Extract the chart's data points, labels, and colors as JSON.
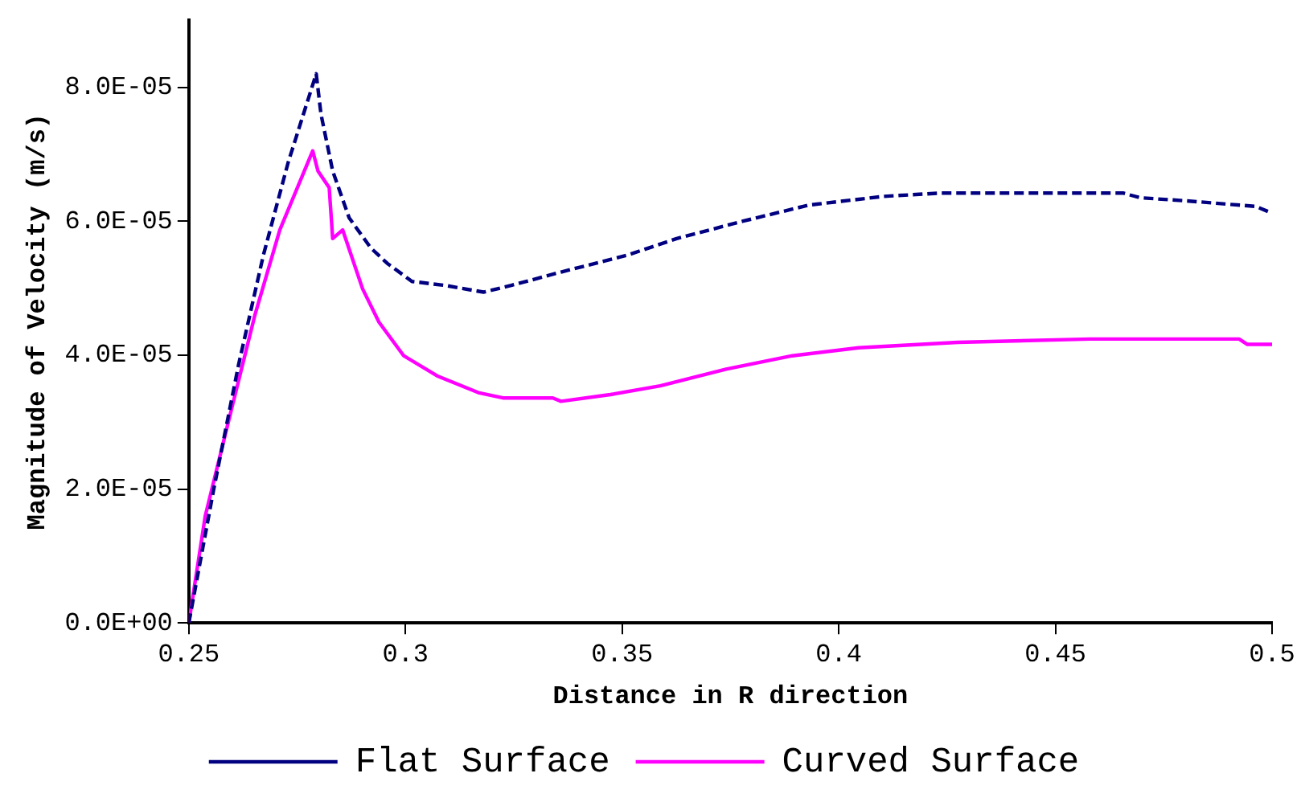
{
  "chart_data": {
    "type": "line",
    "xlabel": "Distance in R direction",
    "ylabel": "Magnitude of Velocity (m/s)",
    "xlim": [
      0.25,
      0.5
    ],
    "xticks": [
      0.25,
      0.3,
      0.35,
      0.4,
      0.45,
      0.5
    ],
    "ylim": [
      0,
      9e-05
    ],
    "yticks": [
      {
        "value": 0,
        "label": "0.0E+00"
      },
      {
        "value": 2e-05,
        "label": "2.0E-05"
      },
      {
        "value": 4e-05,
        "label": "4.0E-05"
      },
      {
        "value": 6e-05,
        "label": "6.0E-05"
      },
      {
        "value": 8e-05,
        "label": "8.0E-05"
      }
    ],
    "grid": false,
    "legend": "bottom",
    "marker": "none",
    "series": [
      {
        "name": "Flat Surface",
        "color": "#000080",
        "line_style": "dashed",
        "x": [
          0.25,
          0.2557,
          0.2615,
          0.2672,
          0.2729,
          0.2794,
          0.2805,
          0.2832,
          0.287,
          0.292,
          0.2958,
          0.3015,
          0.3092,
          0.318,
          0.3244,
          0.3359,
          0.3511,
          0.3626,
          0.3779,
          0.3931,
          0.4103,
          0.4237,
          0.4656,
          0.4695,
          0.4809,
          0.4962,
          0.5
        ],
        "values": [
          0,
          1.98e-05,
          3.86e-05,
          5.49e-05,
          6.87e-05,
          8.2e-05,
          7.6e-05,
          6.75e-05,
          6.05e-05,
          5.6e-05,
          5.37e-05,
          5.1e-05,
          5.04e-05,
          4.94e-05,
          5.04e-05,
          5.24e-05,
          5.49e-05,
          5.74e-05,
          6e-05,
          6.24e-05,
          6.37e-05,
          6.42e-05,
          6.42e-05,
          6.35e-05,
          6.3e-05,
          6.22e-05,
          6.12e-05
        ]
      },
      {
        "name": "Curved Surface",
        "color": "#ff00ff",
        "line_style": "solid",
        "x": [
          0.25,
          0.2538,
          0.2595,
          0.2653,
          0.271,
          0.2786,
          0.2798,
          0.2824,
          0.2832,
          0.2855,
          0.2901,
          0.2939,
          0.2996,
          0.3073,
          0.3168,
          0.3225,
          0.334,
          0.3359,
          0.3473,
          0.3588,
          0.374,
          0.3893,
          0.4046,
          0.4275,
          0.458,
          0.4924,
          0.4943,
          0.5
        ],
        "values": [
          0,
          1.6e-05,
          3.1e-05,
          4.61e-05,
          5.87e-05,
          7.05e-05,
          6.75e-05,
          6.5e-05,
          5.74e-05,
          5.87e-05,
          4.99e-05,
          4.49e-05,
          3.99e-05,
          3.69e-05,
          3.44e-05,
          3.36e-05,
          3.36e-05,
          3.31e-05,
          3.41e-05,
          3.54e-05,
          3.79e-05,
          3.99e-05,
          4.11e-05,
          4.19e-05,
          4.24e-05,
          4.24e-05,
          4.16e-05,
          4.16e-05
        ]
      }
    ]
  }
}
